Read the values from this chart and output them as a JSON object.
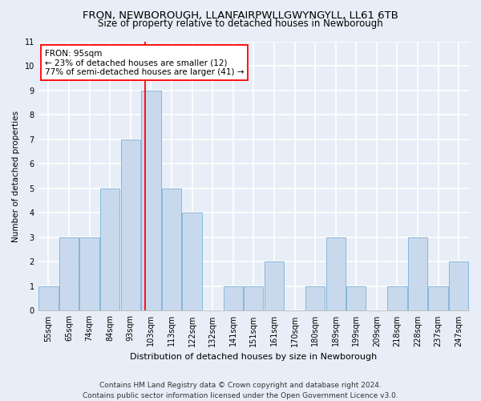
{
  "title_line1": "FRON, NEWBOROUGH, LLANFAIRPWLLGWYNGYLL, LL61 6TB",
  "title_line2": "Size of property relative to detached houses in Newborough",
  "xlabel": "Distribution of detached houses by size in Newborough",
  "ylabel": "Number of detached properties",
  "categories": [
    "55sqm",
    "65sqm",
    "74sqm",
    "84sqm",
    "93sqm",
    "103sqm",
    "113sqm",
    "122sqm",
    "132sqm",
    "141sqm",
    "151sqm",
    "161sqm",
    "170sqm",
    "180sqm",
    "189sqm",
    "199sqm",
    "209sqm",
    "218sqm",
    "228sqm",
    "237sqm",
    "247sqm"
  ],
  "values": [
    1,
    3,
    3,
    5,
    7,
    9,
    5,
    4,
    0,
    1,
    1,
    2,
    0,
    1,
    3,
    1,
    0,
    1,
    3,
    1,
    2
  ],
  "bar_color": "#c9d9ed",
  "bar_edge_color": "#7bafd4",
  "red_line_x": 4.73,
  "annotation_title": "FRON: 95sqm",
  "annotation_line1": "← 23% of detached houses are smaller (12)",
  "annotation_line2": "77% of semi-detached houses are larger (41) →",
  "ylim_max": 11,
  "yticks": [
    0,
    1,
    2,
    3,
    4,
    5,
    6,
    7,
    8,
    9,
    10,
    11
  ],
  "footer_line1": "Contains HM Land Registry data © Crown copyright and database right 2024.",
  "footer_line2": "Contains public sector information licensed under the Open Government Licence v3.0.",
  "background_color": "#e8eef7",
  "grid_color": "#ffffff",
  "title_fontsize": 9.5,
  "subtitle_fontsize": 8.5,
  "axis_label_fontsize": 8,
  "tick_fontsize": 7,
  "ylabel_fontsize": 7.5,
  "footer_fontsize": 6.5,
  "annotation_fontsize": 7.5
}
